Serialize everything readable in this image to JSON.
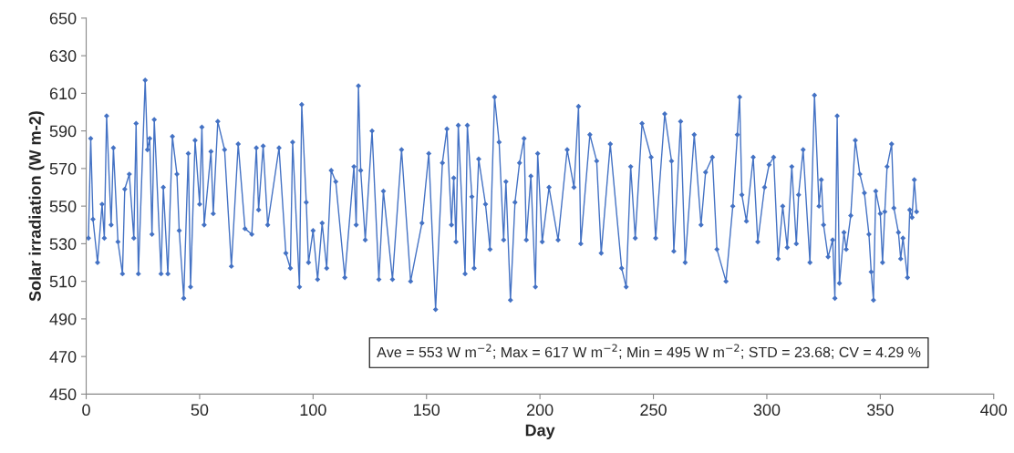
{
  "chart_data": {
    "type": "line",
    "xlabel": "Day",
    "ylabel": "Solar irradiation (W m-2)",
    "annotations": [
      "Ave = 553 W m$^{−2}$; Max = 617 W m$^{−2}$; Min = 495 W m$^{−2}$; STD = 23.68; CV = 4.29 %"
    ],
    "xlim": [
      0,
      400
    ],
    "xticks": [
      0,
      50,
      100,
      150,
      200,
      250,
      300,
      350,
      400
    ],
    "ylim": [
      450,
      650
    ],
    "yticks": [
      450,
      470,
      490,
      510,
      530,
      550,
      570,
      590,
      610,
      630,
      650
    ],
    "grid": false,
    "legend": false,
    "marker": "diamond",
    "line_style": "solid",
    "series": [
      {
        "color": "#4472c4",
        "x": [
          1,
          2,
          3,
          5,
          7,
          8,
          9,
          11,
          12,
          14,
          16,
          17,
          19,
          21,
          22,
          23,
          26,
          27,
          28,
          29,
          30,
          33,
          34,
          36,
          38,
          40,
          41,
          43,
          45,
          46,
          48,
          50,
          51,
          52,
          55,
          56,
          58,
          61,
          64,
          67,
          70,
          73,
          75,
          76,
          78,
          80,
          85,
          88,
          90,
          91,
          94,
          95,
          97,
          98,
          100,
          102,
          104,
          106,
          108,
          110,
          114,
          118,
          119,
          120,
          121,
          123,
          126,
          129,
          131,
          135,
          139,
          143,
          148,
          151,
          154,
          157,
          159,
          161,
          162,
          163,
          164,
          167,
          168,
          170,
          171,
          173,
          176,
          178,
          180,
          182,
          184,
          185,
          187,
          189,
          191,
          193,
          194,
          196,
          198,
          199,
          201,
          204,
          208,
          212,
          215,
          217,
          218,
          222,
          225,
          227,
          231,
          236,
          238,
          240,
          242,
          245,
          249,
          251,
          255,
          258,
          259,
          262,
          264,
          268,
          271,
          273,
          276,
          278,
          282,
          285,
          287,
          288,
          289,
          291,
          294,
          296,
          299,
          301,
          303,
          305,
          307,
          309,
          311,
          313,
          314,
          316,
          319,
          321,
          323,
          324,
          325,
          327,
          329,
          330,
          331,
          332,
          334,
          335,
          337,
          339,
          341,
          343,
          345,
          346,
          347,
          348,
          350,
          351,
          352,
          353,
          355,
          356,
          358,
          359,
          360,
          362,
          363,
          364,
          365,
          366
        ],
        "values": [
          533,
          586,
          543,
          520,
          551,
          533,
          598,
          540,
          581,
          531,
          514,
          559,
          567,
          533,
          594,
          514,
          617,
          580,
          586,
          535,
          596,
          514,
          560,
          514,
          587,
          567,
          537,
          501,
          578,
          507,
          585,
          551,
          592,
          540,
          579,
          546,
          595,
          580,
          518,
          583,
          538,
          535,
          581,
          548,
          582,
          540,
          581,
          525,
          517,
          584,
          507,
          604,
          552,
          520,
          537,
          511,
          541,
          517,
          569,
          563,
          512,
          571,
          540,
          614,
          569,
          532,
          590,
          511,
          558,
          511,
          580,
          510,
          541,
          578,
          495,
          573,
          591,
          540,
          565,
          531,
          593,
          514,
          593,
          555,
          517,
          575,
          551,
          527,
          608,
          584,
          532,
          563,
          500,
          552,
          573,
          586,
          532,
          566,
          507,
          578,
          531,
          560,
          532,
          580,
          560,
          603,
          530,
          588,
          574,
          525,
          583,
          517,
          507,
          571,
          533,
          594,
          576,
          533,
          599,
          574,
          526,
          595,
          520,
          588,
          540,
          568,
          576,
          527,
          510,
          550,
          588,
          608,
          556,
          542,
          576,
          531,
          560,
          572,
          576,
          522,
          550,
          528,
          571,
          530,
          556,
          580,
          520,
          609,
          550,
          564,
          540,
          523,
          532,
          501,
          598,
          509,
          536,
          527,
          545,
          585,
          567,
          557,
          535,
          515,
          500,
          558,
          546,
          520,
          547,
          571,
          583,
          549,
          536,
          522,
          533,
          512,
          548,
          544,
          564,
          547
        ]
      }
    ]
  }
}
